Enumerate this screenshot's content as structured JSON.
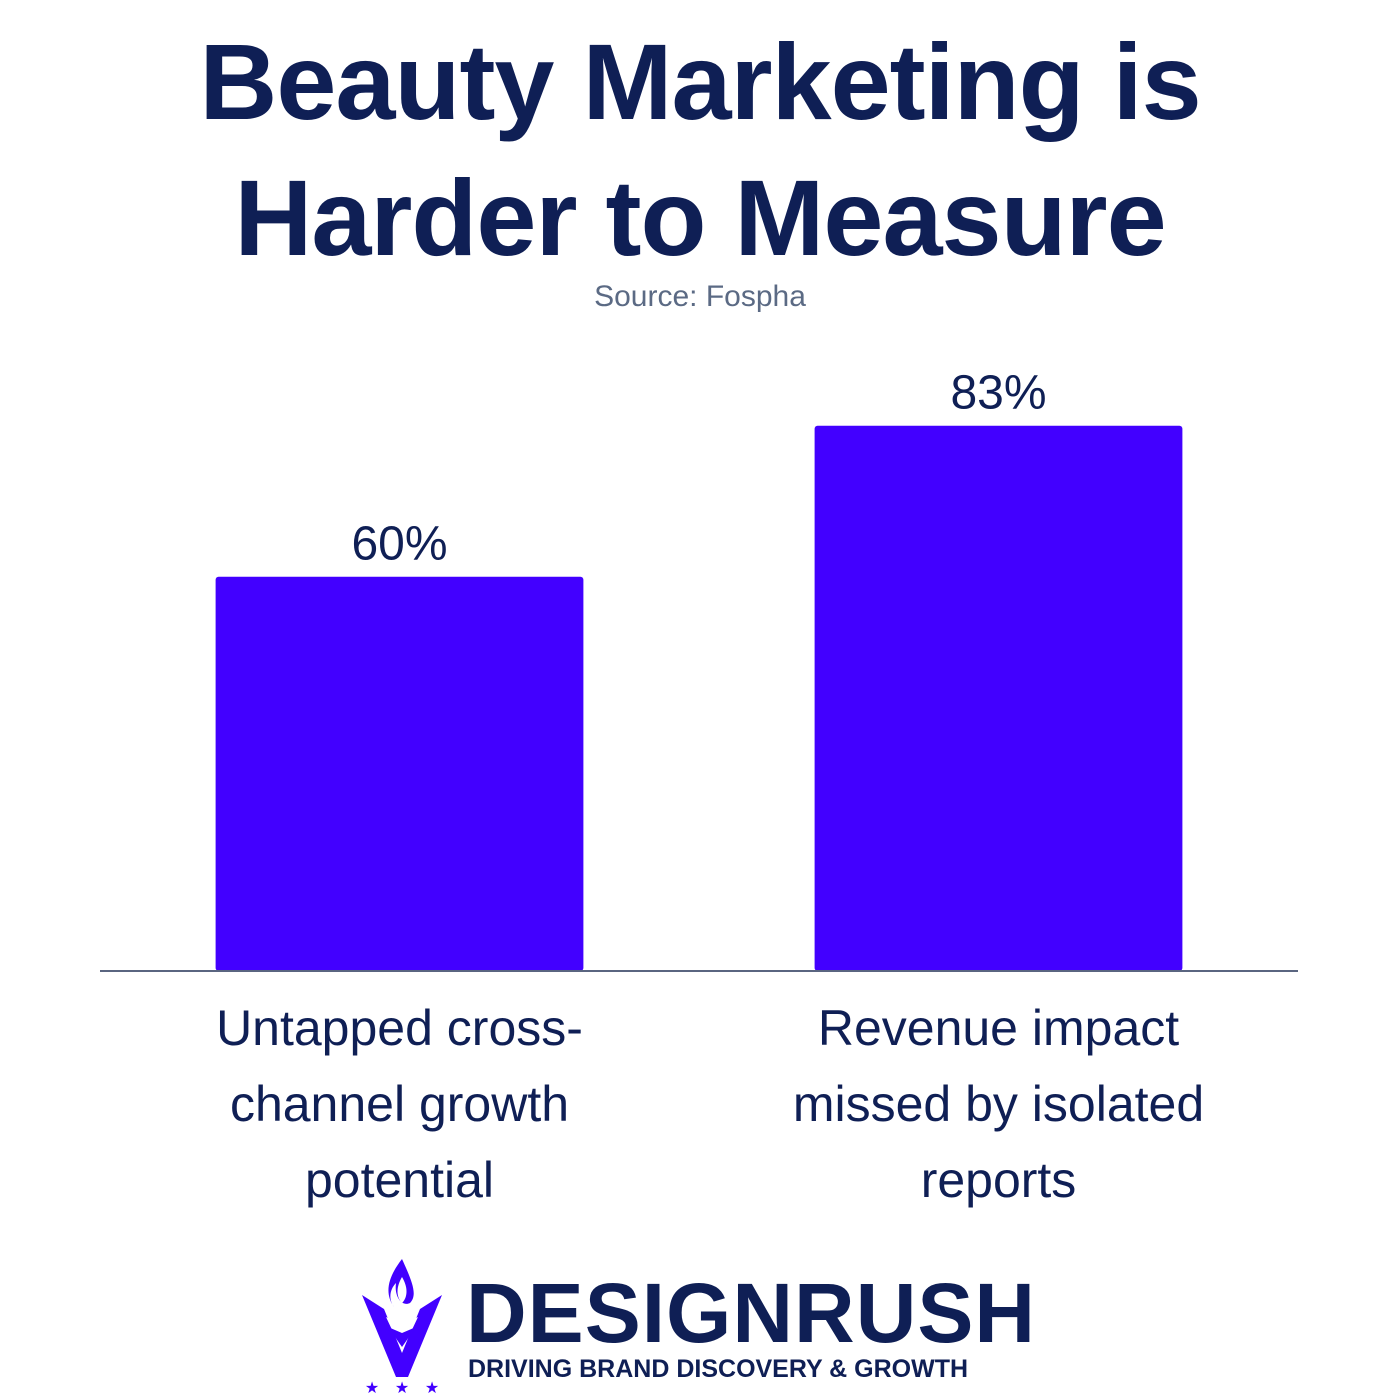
{
  "chart_data": {
    "type": "bar",
    "title": "Beauty Marketing is Harder to Measure",
    "subtitle": "Source: Fospha",
    "categories": [
      "Untapped cross-channel growth potential",
      "Revenue impact missed by isolated reports"
    ],
    "values": [
      60,
      83
    ],
    "value_labels": [
      "60%",
      "83%"
    ],
    "color": "#4200ff",
    "ylim": [
      0,
      100
    ]
  },
  "logo": {
    "brand": "DESIGNRUSH",
    "tagline": "DRIVING BRAND DISCOVERY & GROWTH"
  }
}
